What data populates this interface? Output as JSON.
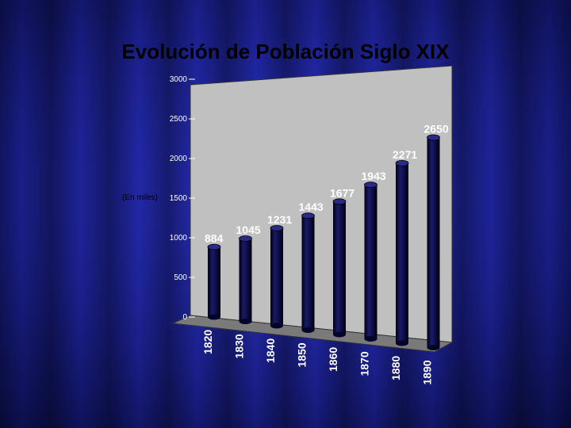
{
  "slide": {
    "title": "Evolución de Población Siglo XIX",
    "axis_note": "(En miles)"
  },
  "chart_data": {
    "type": "bar",
    "title": "Evolución de Población Siglo XIX",
    "ylabel": "(En miles)",
    "xlabel": "",
    "categories": [
      "1820",
      "1830",
      "1840",
      "1850",
      "1860",
      "1870",
      "1880",
      "1890"
    ],
    "values": [
      884,
      1045,
      1231,
      1443,
      1677,
      1943,
      2271,
      2650
    ],
    "ylim": [
      0,
      3000
    ],
    "yticks": [
      0,
      500,
      1000,
      1500,
      2000,
      2500,
      3000
    ],
    "grid": false,
    "legend": "none",
    "colors": {
      "bar": "#050538",
      "wall": "#c0c0c0",
      "floor": "#7a7a7a",
      "background": "#1a1f8a"
    }
  }
}
